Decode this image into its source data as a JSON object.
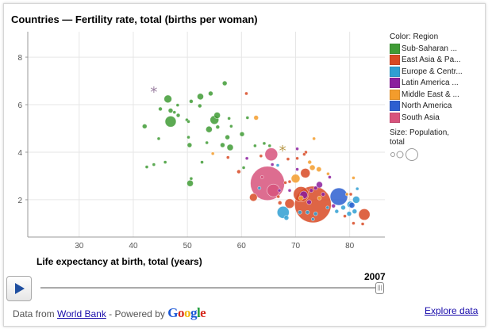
{
  "title": "Countries — Fertility rate, total (births per woman)",
  "chart_data": {
    "type": "scatter",
    "title": "Countries — Fertility rate, total (births per woman)",
    "xlabel": "Life expectancy at birth, total (years)",
    "ylabel": "",
    "xlim": [
      20.5,
      86.5
    ],
    "ylim": [
      0.43,
      9.07
    ],
    "xticks": [
      30,
      40,
      50,
      60,
      70,
      80
    ],
    "yticks": [
      2,
      4,
      6,
      8
    ],
    "grid": true,
    "legend_placement": "right",
    "color_label": "Color: Region",
    "size_label": "Size: Population, total",
    "year": "2007",
    "series": [
      {
        "name": "Sub-Saharan ...",
        "color": "#3f9b35",
        "points": [
          [
            56.9,
            6.9,
            22
          ],
          [
            46.4,
            6.24,
            60
          ],
          [
            54.3,
            6.47,
            22
          ],
          [
            50.7,
            6.14,
            15
          ],
          [
            52.4,
            6.34,
            40
          ],
          [
            52.3,
            5.95,
            15
          ],
          [
            45.0,
            5.82,
            15
          ],
          [
            48.2,
            5.98,
            10
          ],
          [
            46.9,
            5.75,
            22
          ],
          [
            47.6,
            5.68,
            10
          ],
          [
            48.3,
            5.55,
            15
          ],
          [
            46.9,
            5.29,
            120
          ],
          [
            42.1,
            5.09,
            22
          ],
          [
            49.9,
            5.36,
            10
          ],
          [
            50.2,
            5.29,
            10
          ],
          [
            55.5,
            5.55,
            40
          ],
          [
            55.0,
            5.36,
            75
          ],
          [
            54.0,
            4.96,
            40
          ],
          [
            55.6,
            5.06,
            15
          ],
          [
            57.7,
            5.42,
            10
          ],
          [
            58.1,
            5.09,
            10
          ],
          [
            60.1,
            4.76,
            22
          ],
          [
            57.4,
            4.63,
            22
          ],
          [
            44.7,
            4.57,
            10
          ],
          [
            50.2,
            4.63,
            10
          ],
          [
            50.4,
            4.3,
            22
          ],
          [
            53.6,
            4.4,
            10
          ],
          [
            56.5,
            4.3,
            22
          ],
          [
            57.9,
            4.2,
            40
          ],
          [
            62.5,
            4.27,
            10
          ],
          [
            64.2,
            4.37,
            10
          ],
          [
            61.1,
            5.45,
            10
          ],
          [
            42.5,
            3.38,
            10
          ],
          [
            43.8,
            3.48,
            10
          ],
          [
            45.9,
            3.58,
            10
          ],
          [
            52.7,
            3.58,
            10
          ],
          [
            50.5,
            2.69,
            40
          ],
          [
            50.7,
            2.89,
            10
          ],
          [
            60.4,
            3.35,
            10
          ],
          [
            65.2,
            4.27,
            10
          ]
        ]
      },
      {
        "name": "East Asia & Pa...",
        "color": "#d84a24",
        "points": [
          [
            60.9,
            6.47,
            10
          ],
          [
            57.5,
            3.78,
            10
          ],
          [
            63.6,
            3.84,
            10
          ],
          [
            59.5,
            3.18,
            15
          ],
          [
            71.9,
            4.0,
            10
          ],
          [
            71.6,
            3.91,
            10
          ],
          [
            68.6,
            3.71,
            10
          ],
          [
            70.3,
            3.74,
            10
          ],
          [
            71.8,
            3.12,
            90
          ],
          [
            62.2,
            2.1,
            60
          ],
          [
            68.9,
            2.76,
            10
          ],
          [
            67.1,
            1.87,
            15
          ],
          [
            68.9,
            1.84,
            90
          ],
          [
            73.2,
            1.8,
            1320
          ],
          [
            71.0,
            2.23,
            230
          ],
          [
            79.1,
            1.31,
            10
          ],
          [
            80.7,
            1.01,
            10
          ],
          [
            82.4,
            0.98,
            10
          ],
          [
            82.7,
            1.38,
            127
          ],
          [
            80.2,
            2.23,
            10
          ],
          [
            68.1,
            2.72,
            10
          ],
          [
            66.8,
            2.13,
            10
          ]
        ]
      },
      {
        "name": "Europe & Centr...",
        "color": "#2f9fd2",
        "points": [
          [
            66.7,
            3.45,
            10
          ],
          [
            63.3,
            2.49,
            10
          ],
          [
            67.7,
            1.47,
            142
          ],
          [
            68.3,
            1.24,
            22
          ],
          [
            81.2,
            2.0,
            50
          ],
          [
            80.9,
            1.51,
            22
          ],
          [
            72.2,
            1.47,
            15
          ],
          [
            73.7,
            1.41,
            15
          ],
          [
            70.8,
            1.47,
            15
          ],
          [
            77.6,
            1.51,
            15
          ],
          [
            78.8,
            1.67,
            22
          ],
          [
            79.9,
            1.41,
            22
          ],
          [
            81.4,
            2.46,
            10
          ],
          [
            73.2,
            1.18,
            10
          ],
          [
            80.1,
            1.8,
            40
          ],
          [
            75.9,
            1.67,
            10
          ]
        ]
      },
      {
        "name": "Latin America ...",
        "color": "#8b1f9e",
        "points": [
          [
            61.0,
            3.74,
            10
          ],
          [
            70.3,
            4.14,
            10
          ],
          [
            65.7,
            3.48,
            10
          ],
          [
            76.3,
            2.95,
            10
          ],
          [
            70.3,
            3.28,
            10
          ],
          [
            67.0,
            2.39,
            10
          ],
          [
            72.9,
            2.39,
            15
          ],
          [
            73.7,
            2.49,
            15
          ],
          [
            72.5,
            1.9,
            22
          ],
          [
            75.1,
            2.23,
            15
          ],
          [
            77.0,
            1.74,
            15
          ],
          [
            68.9,
            2.39,
            10
          ],
          [
            71.5,
            2.2,
            60
          ],
          [
            74.4,
            2.63,
            40
          ]
        ]
      },
      {
        "name": "Middle East & ...",
        "color": "#f39c2c",
        "points": [
          [
            54.7,
            3.94,
            10
          ],
          [
            62.7,
            5.45,
            22
          ],
          [
            73.4,
            4.57,
            10
          ],
          [
            72.6,
            3.58,
            15
          ],
          [
            73.1,
            3.35,
            30
          ],
          [
            74.3,
            3.28,
            25
          ],
          [
            76.0,
            3.09,
            10
          ],
          [
            80.7,
            2.92,
            10
          ],
          [
            70.0,
            2.89,
            75
          ],
          [
            71.0,
            2.07,
            22
          ],
          [
            74.4,
            2.07,
            15
          ],
          [
            79.5,
            2.23,
            10
          ]
        ]
      },
      {
        "name": "North America",
        "color": "#2d5fd0",
        "points": [
          [
            78.0,
            2.13,
            300
          ],
          [
            80.4,
            1.77,
            33
          ]
        ]
      },
      {
        "name": "South Asia",
        "color": "#d7537c",
        "points": [
          [
            65.5,
            3.91,
            160
          ],
          [
            64.8,
            2.69,
            1150
          ],
          [
            65.9,
            2.39,
            160
          ],
          [
            63.8,
            2.95,
            10
          ]
        ]
      }
    ],
    "highlighted_markers": [
      {
        "shape": "star",
        "color": "#9a7fa0",
        "x": 43.8,
        "y": 6.57
      },
      {
        "shape": "star",
        "color": "#b99a4a",
        "x": 67.6,
        "y": 4.1
      }
    ]
  },
  "controls": {
    "play_icon": "play-icon",
    "year": "2007",
    "slider_value": 1.0
  },
  "footer": {
    "data_from": "Data from ",
    "source_link": "World Bank",
    "powered": " - Powered by ",
    "google": "Google",
    "explore": "Explore data"
  }
}
